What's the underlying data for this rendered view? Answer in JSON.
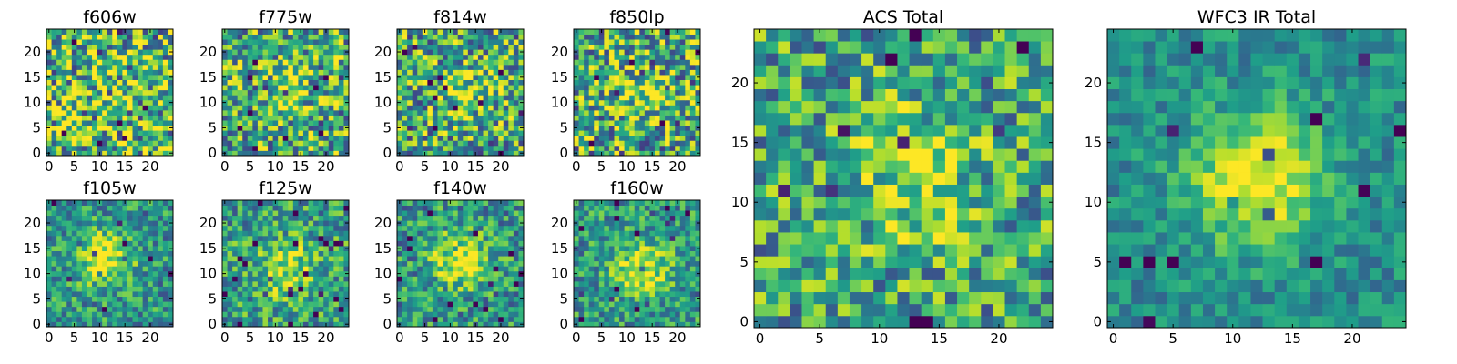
{
  "chart_data": {
    "type": "heatmap",
    "colormap": "viridis",
    "grid_size": 25,
    "panels": [
      {
        "id": "f606w",
        "title": "f606w",
        "xticks": [
          "0",
          "5",
          "10",
          "15",
          "20"
        ],
        "yticks": [
          "0",
          "5",
          "10",
          "15",
          "20"
        ],
        "center": [
          12,
          12
        ],
        "peak": 0.0,
        "noise": 1.0,
        "seed": 11
      },
      {
        "id": "f775w",
        "title": "f775w",
        "xticks": [
          "0",
          "5",
          "10",
          "15",
          "20"
        ],
        "yticks": [
          "0",
          "5",
          "10",
          "15",
          "20"
        ],
        "center": [
          12,
          12
        ],
        "peak": 0.18,
        "noise": 0.85,
        "seed": 23
      },
      {
        "id": "f814w",
        "title": "f814w",
        "xticks": [
          "0",
          "5",
          "10",
          "15",
          "20"
        ],
        "yticks": [
          "0",
          "5",
          "10",
          "15",
          "20"
        ],
        "center": [
          13,
          12
        ],
        "peak": 0.25,
        "noise": 0.85,
        "seed": 37
      },
      {
        "id": "f850lp",
        "title": "f850lp",
        "xticks": [
          "0",
          "5",
          "10",
          "15",
          "20"
        ],
        "yticks": [
          "0",
          "5",
          "10",
          "15",
          "20"
        ],
        "center": [
          13,
          11
        ],
        "peak": 0.22,
        "noise": 0.9,
        "seed": 41
      },
      {
        "id": "f105w",
        "title": "f105w",
        "xticks": [
          "0",
          "5",
          "10",
          "15",
          "20"
        ],
        "yticks": [
          "0",
          "5",
          "10",
          "15",
          "20"
        ],
        "center": [
          11,
          13
        ],
        "peak": 0.45,
        "noise": 0.55,
        "seed": 53
      },
      {
        "id": "f125w",
        "title": "f125w",
        "xticks": [
          "0",
          "5",
          "10",
          "15",
          "20"
        ],
        "yticks": [
          "0",
          "5",
          "10",
          "15",
          "20"
        ],
        "center": [
          12,
          11
        ],
        "peak": 0.35,
        "noise": 0.6,
        "seed": 67
      },
      {
        "id": "f140w",
        "title": "f140w",
        "xticks": [
          "0",
          "5",
          "10",
          "15",
          "20"
        ],
        "yticks": [
          "0",
          "5",
          "10",
          "15",
          "20"
        ],
        "center": [
          12,
          13
        ],
        "peak": 0.45,
        "noise": 0.6,
        "seed": 71
      },
      {
        "id": "f160w",
        "title": "f160w",
        "xticks": [
          "0",
          "5",
          "10",
          "15",
          "20"
        ],
        "yticks": [
          "0",
          "5",
          "10",
          "15",
          "20"
        ],
        "center": [
          13,
          11
        ],
        "peak": 0.4,
        "noise": 0.55,
        "seed": 89
      },
      {
        "id": "acs_total",
        "title": "ACS Total",
        "xticks": [
          "0",
          "5",
          "10",
          "15",
          "20"
        ],
        "yticks": [
          "0",
          "5",
          "10",
          "15",
          "20"
        ],
        "center": [
          13,
          12
        ],
        "peak": 0.3,
        "noise": 0.7,
        "seed": 97
      },
      {
        "id": "wfc3_ir_total",
        "title": "WFC3 IR Total",
        "xticks": [
          "0",
          "5",
          "10",
          "15",
          "20"
        ],
        "yticks": [
          "0",
          "5",
          "10",
          "15",
          "20"
        ],
        "center": [
          12,
          12
        ],
        "peak": 0.55,
        "noise": 0.35,
        "seed": 103
      }
    ]
  }
}
